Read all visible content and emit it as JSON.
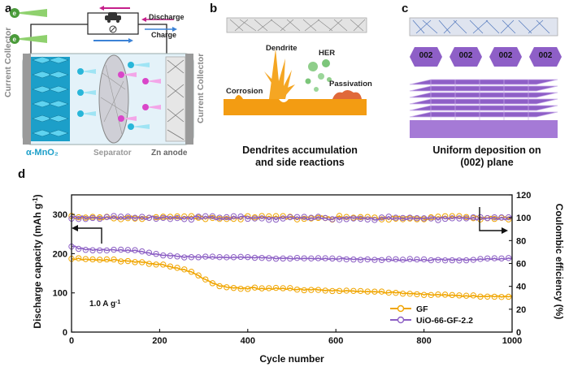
{
  "panel_a": {
    "letter": "a",
    "discharge": "Discharge",
    "charge": "Charge",
    "collector_left": "Current Collector",
    "collector_right": "Current Collector",
    "cathode": "α-MnO₂",
    "separator": "Separator",
    "anode": "Zn anode",
    "colors": {
      "cathode": "#29b6d9",
      "ion_cyan": "#3cc4e6",
      "ion_magenta": "#d946c9",
      "electrolyte": "#d8eef8"
    }
  },
  "panel_b": {
    "letter": "b",
    "dendrite": "Dendrite",
    "her": "HER",
    "corrosion": "Corrosion",
    "passivation": "Passivation",
    "caption_line1": "Dendrites accumulation",
    "caption_line2": "and side reactions",
    "colors": {
      "zinc": "#f39c12",
      "bubble": "#7cc67a"
    }
  },
  "panel_c": {
    "letter": "c",
    "facets": [
      "002",
      "002",
      "002",
      "002"
    ],
    "caption_line1": "Uniform deposition on",
    "caption_line2": "(002) plane",
    "colors": {
      "facet": "#8e5fc7",
      "deposit": "#a57ad6"
    }
  },
  "panel_d": {
    "letter": "d",
    "annotation": "1.0 A g",
    "annotation_sup": "-1"
  },
  "chart_data": {
    "type": "line",
    "xlabel": "Cycle number",
    "ylabel": "Discharge capacity (mAh g-1)",
    "ylabel_main": "Discharge capacity (mAh g",
    "ylabel_sup": "-1",
    "ylabel_end": ")",
    "y2label": "Coulombic efficiency (%)",
    "xlim": [
      0,
      1000
    ],
    "ylim": [
      0,
      350
    ],
    "y2lim": [
      0,
      120
    ],
    "xticks": [
      "0",
      "200",
      "400",
      "600",
      "800",
      "1000"
    ],
    "yticks": [
      "0",
      "100",
      "200",
      "300"
    ],
    "y2ticks": [
      "0",
      "20",
      "40",
      "60",
      "80",
      "100",
      "120"
    ],
    "legend_position": "bottom-right",
    "series": [
      {
        "name": "GF",
        "axis": "left",
        "color": "#f0a500",
        "x": [
          0,
          50,
          100,
          150,
          200,
          250,
          280,
          300,
          330,
          360,
          400,
          500,
          600,
          700,
          800,
          900,
          1000
        ],
        "values": [
          187,
          185,
          183,
          180,
          172,
          160,
          150,
          135,
          120,
          113,
          112,
          110,
          106,
          102,
          97,
          92,
          90
        ]
      },
      {
        "name": "UiO-66-GF-2.2",
        "axis": "left",
        "color": "#8c5fc4",
        "x": [
          0,
          20,
          50,
          100,
          150,
          200,
          250,
          300,
          400,
          500,
          600,
          700,
          800,
          900,
          1000
        ],
        "values": [
          220,
          213,
          209,
          210,
          207,
          197,
          192,
          191,
          190,
          188,
          187,
          185,
          184,
          185,
          187
        ]
      },
      {
        "name": "GF CE",
        "axis": "right",
        "color": "#f0a500",
        "x": [
          0,
          1000
        ],
        "values": [
          100,
          100
        ]
      },
      {
        "name": "UiO-66-GF-2.2 CE",
        "axis": "right",
        "color": "#8c5fc4",
        "x": [
          0,
          1000
        ],
        "values": [
          100,
          99.5
        ]
      }
    ]
  }
}
